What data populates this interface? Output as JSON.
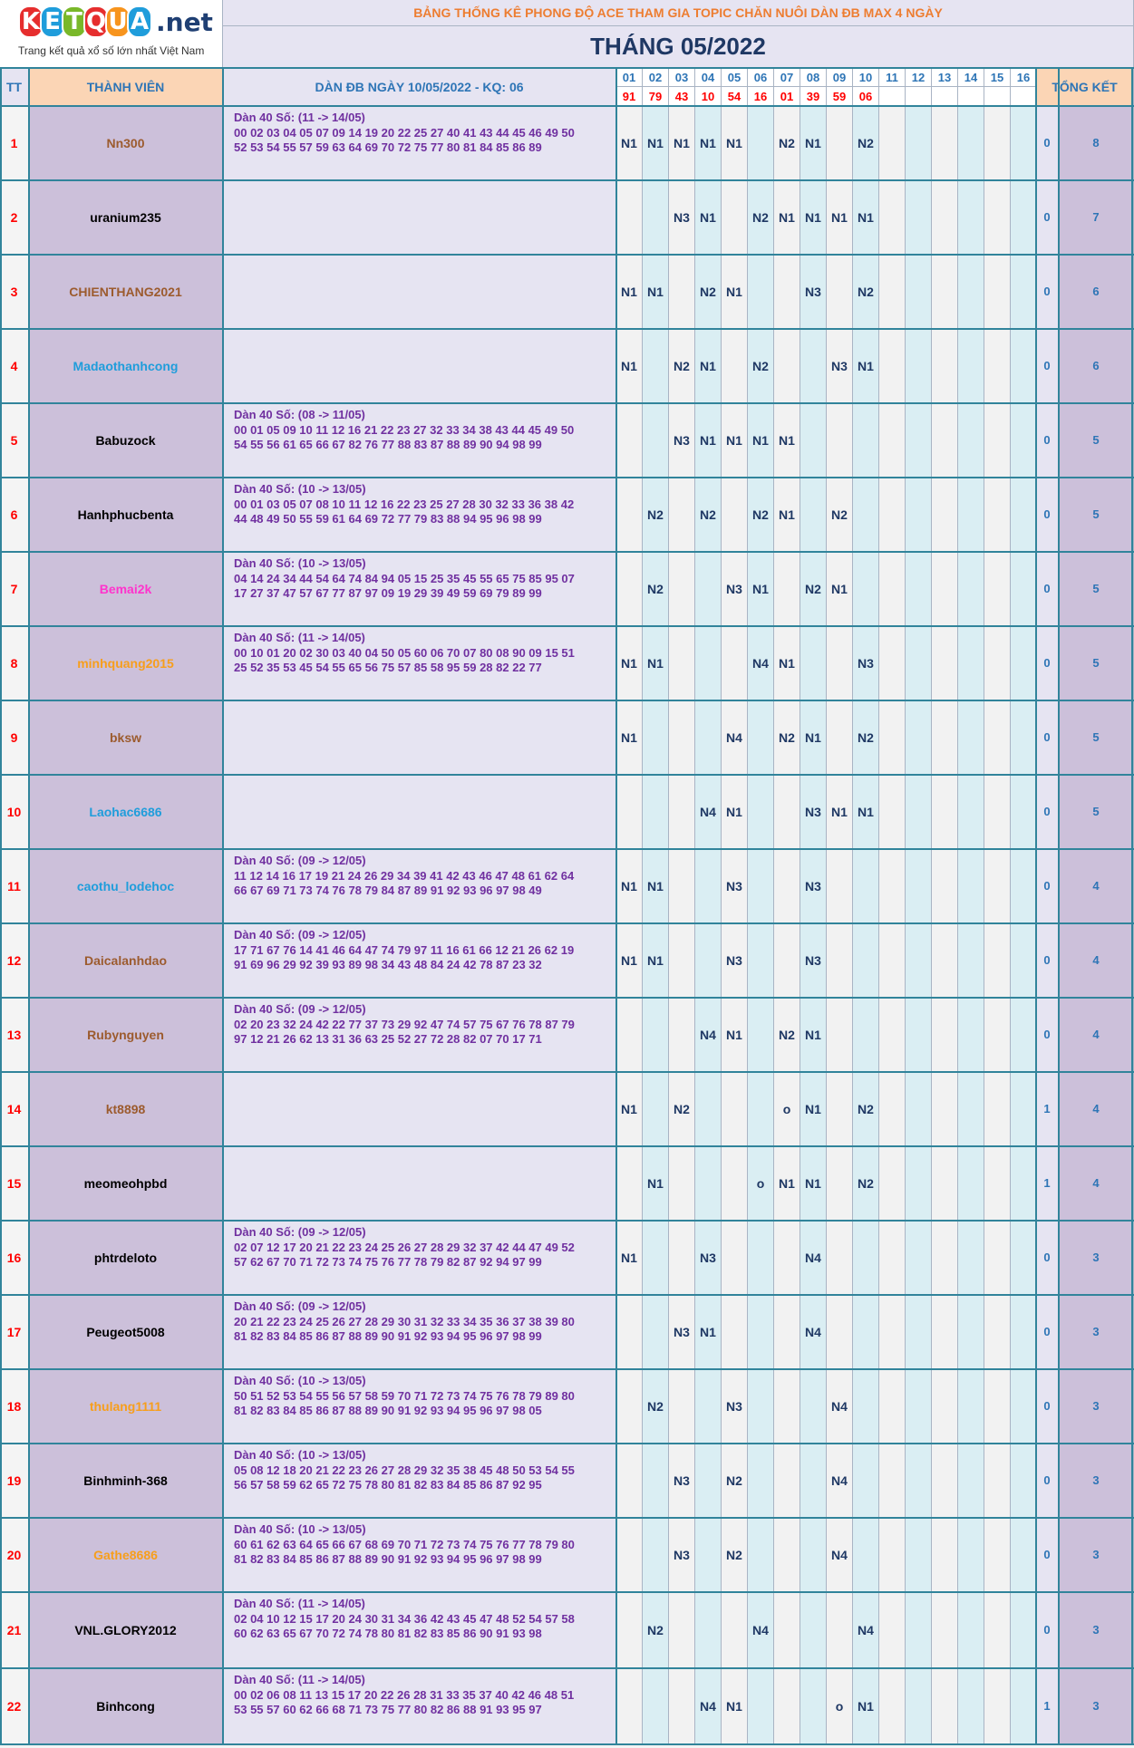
{
  "logo": {
    "letters": [
      "K",
      "E",
      "T",
      "Q",
      "U",
      "A"
    ],
    "suffix": ".net",
    "tagline": "Trang kết quả xổ số lớn nhất Việt Nam"
  },
  "banner_title": "BẢNG THỐNG KÊ PHONG ĐỘ ACE THAM GIA TOPIC CHĂN NUÔI DÀN ĐB MAX 4 NGÀY",
  "month_title": "THÁNG 05/2022",
  "headers": {
    "tt": "TT",
    "member": "THÀNH VIÊN",
    "dan": "DÀN ĐB NGÀY 10/05/2022 - KQ: 06",
    "summary": "TỔNG KẾT"
  },
  "days": [
    "01",
    "02",
    "03",
    "04",
    "05",
    "06",
    "07",
    "08",
    "09",
    "10",
    "11",
    "12",
    "13",
    "14",
    "15",
    "16"
  ],
  "results": [
    "91",
    "79",
    "43",
    "10",
    "54",
    "16",
    "01",
    "39",
    "59",
    "06",
    "",
    "",
    "",
    "",
    "",
    ""
  ],
  "colors": {
    "brown": "#9c5b2e",
    "black": "#000000",
    "blue": "#1f9ddb",
    "pink": "#ff33cc",
    "orange": "#f79e1b"
  },
  "rows": [
    {
      "tt": "1",
      "name": "Nn300",
      "color": "brown",
      "dan_title": "Dàn 40 Số: (11 -> 14/05)",
      "dan_1": "00 02 03 04 05 07 09 14 19 20 22 25 27 40 41 43 44 45 46 49 50",
      "dan_2": "52 53 54 55 57 59 63 64 69 70 72 75 77 80 81 84 85 86 89",
      "marks": [
        "N1",
        "N1",
        "N1",
        "N1",
        "N1",
        "",
        "N2",
        "N1",
        "",
        "N2",
        "",
        "",
        "",
        "",
        "",
        ""
      ],
      "s1": "0",
      "s2": "8"
    },
    {
      "tt": "2",
      "name": "uranium235",
      "color": "black",
      "dan_title": "",
      "dan_1": "",
      "dan_2": "",
      "marks": [
        "",
        "",
        "N3",
        "N1",
        "",
        "N2",
        "N1",
        "N1",
        "N1",
        "N1",
        "",
        "",
        "",
        "",
        "",
        ""
      ],
      "s1": "0",
      "s2": "7"
    },
    {
      "tt": "3",
      "name": "CHIENTHANG2021",
      "color": "brown",
      "dan_title": "",
      "dan_1": "",
      "dan_2": "",
      "marks": [
        "N1",
        "N1",
        "",
        "N2",
        "N1",
        "",
        "",
        "N3",
        "",
        "N2",
        "",
        "",
        "",
        "",
        "",
        ""
      ],
      "s1": "0",
      "s2": "6"
    },
    {
      "tt": "4",
      "name": "Madaothanhcong",
      "color": "blue",
      "dan_title": "",
      "dan_1": "",
      "dan_2": "",
      "marks": [
        "N1",
        "",
        "N2",
        "N1",
        "",
        "N2",
        "",
        "",
        "N3",
        "N1",
        "",
        "",
        "",
        "",
        "",
        ""
      ],
      "s1": "0",
      "s2": "6"
    },
    {
      "tt": "5",
      "name": "Babuzock",
      "color": "black",
      "dan_title": "Dàn 40 Số: (08 -> 11/05)",
      "dan_1": "00 01 05 09 10 11 12 16 21 22 23 27 32 33 34 38 43 44 45 49 50",
      "dan_2": "54 55 56 61 65 66 67 82 76 77 88 83 87 88 89 90 94 98 99",
      "marks": [
        "",
        "",
        "N3",
        "N1",
        "N1",
        "N1",
        "N1",
        "",
        "",
        "",
        "",
        "",
        "",
        "",
        "",
        ""
      ],
      "s1": "0",
      "s2": "5"
    },
    {
      "tt": "6",
      "name": "Hanhphucbenta",
      "color": "black",
      "dan_title": "Dàn 40 Số: (10 -> 13/05)",
      "dan_1": "00 01 03 05 07 08 10 11 12 16 22 23 25 27 28 30 32 33 36 38 42",
      "dan_2": "44 48 49 50 55 59 61 64 69 72 77 79 83 88 94 95 96 98 99",
      "marks": [
        "",
        "N2",
        "",
        "N2",
        "",
        "N2",
        "N1",
        "",
        "N2",
        "",
        "",
        "",
        "",
        "",
        "",
        ""
      ],
      "s1": "0",
      "s2": "5"
    },
    {
      "tt": "7",
      "name": "Bemai2k",
      "color": "pink",
      "dan_title": "Dàn 40 Số: (10 -> 13/05)",
      "dan_1": "04 14 24 34 44 54 64 74 84 94 05 15 25 35 45 55 65 75 85 95 07",
      "dan_2": "17 27 37 47 57 67 77 87 97 09 19 29 39 49 59 69 79 89 99",
      "marks": [
        "",
        "N2",
        "",
        "",
        "N3",
        "N1",
        "",
        "N2",
        "N1",
        "",
        "",
        "",
        "",
        "",
        "",
        ""
      ],
      "s1": "0",
      "s2": "5"
    },
    {
      "tt": "8",
      "name": "minhquang2015",
      "color": "orange",
      "dan_title": "Dàn 40 Số: (11 -> 14/05)",
      "dan_1": "00 10 01 20 02 30 03 40 04 50 05 60 06 70 07 80 08 90 09 15 51",
      "dan_2": "25 52 35 53 45 54 55 65 56 75 57 85 58 95 59 28 82 22 77",
      "marks": [
        "N1",
        "N1",
        "",
        "",
        "",
        "N4",
        "N1",
        "",
        "",
        "N3",
        "",
        "",
        "",
        "",
        "",
        ""
      ],
      "s1": "0",
      "s2": "5"
    },
    {
      "tt": "9",
      "name": "bksw",
      "color": "brown",
      "dan_title": "",
      "dan_1": "",
      "dan_2": "",
      "marks": [
        "N1",
        "",
        "",
        "",
        "N4",
        "",
        "N2",
        "N1",
        "",
        "N2",
        "",
        "",
        "",
        "",
        "",
        ""
      ],
      "s1": "0",
      "s2": "5"
    },
    {
      "tt": "10",
      "name": "Laohac6686",
      "color": "blue",
      "dan_title": "",
      "dan_1": "",
      "dan_2": "",
      "marks": [
        "",
        "",
        "",
        "N4",
        "N1",
        "",
        "",
        "N3",
        "N1",
        "N1",
        "",
        "",
        "",
        "",
        "",
        ""
      ],
      "s1": "0",
      "s2": "5"
    },
    {
      "tt": "11",
      "name": "caothu_lodehoc",
      "color": "blue",
      "dan_title": "Dàn 40 Số: (09 -> 12/05)",
      "dan_1": "11 12 14 16 17 19 21 24 26 29 34 39 41 42 43 46 47 48 61 62 64",
      "dan_2": "66 67 69 71 73 74 76 78 79 84 87 89 91 92 93 96 97 98 49",
      "marks": [
        "N1",
        "N1",
        "",
        "",
        "N3",
        "",
        "",
        "N3",
        "",
        "",
        "",
        "",
        "",
        "",
        "",
        ""
      ],
      "s1": "0",
      "s2": "4"
    },
    {
      "tt": "12",
      "name": "Daicalanhdao",
      "color": "brown",
      "dan_title": "Dàn 40 Số: (09 -> 12/05)",
      "dan_1": "17 71 67 76 14 41 46 64 47 74 79 97 11 16 61 66 12 21 26 62 19",
      "dan_2": "91 69 96 29 92 39 93 89 98 34 43 48 84 24 42 78 87 23 32",
      "marks": [
        "N1",
        "N1",
        "",
        "",
        "N3",
        "",
        "",
        "N3",
        "",
        "",
        "",
        "",
        "",
        "",
        "",
        ""
      ],
      "s1": "0",
      "s2": "4"
    },
    {
      "tt": "13",
      "name": "Rubynguyen",
      "color": "brown",
      "dan_title": "Dàn 40 Số: (09 -> 12/05)",
      "dan_1": "02 20 23 32 24 42 22 77 37 73 29 92 47 74 57 75 67 76 78 87 79",
      "dan_2": "97 12 21 26 62 13 31 36 63 25 52 27 72 28 82 07 70 17 71",
      "marks": [
        "",
        "",
        "",
        "N4",
        "N1",
        "",
        "N2",
        "N1",
        "",
        "",
        "",
        "",
        "",
        "",
        "",
        ""
      ],
      "s1": "0",
      "s2": "4"
    },
    {
      "tt": "14",
      "name": "kt8898",
      "color": "brown",
      "dan_title": "",
      "dan_1": "",
      "dan_2": "",
      "marks": [
        "N1",
        "",
        "N2",
        "",
        "",
        "",
        "o",
        "N1",
        "",
        "N2",
        "",
        "",
        "",
        "",
        "",
        ""
      ],
      "s1": "1",
      "s2": "4"
    },
    {
      "tt": "15",
      "name": "meomeohpbd",
      "color": "black",
      "dan_title": "",
      "dan_1": "",
      "dan_2": "",
      "marks": [
        "",
        "N1",
        "",
        "",
        "",
        "o",
        "N1",
        "N1",
        "",
        "N2",
        "",
        "",
        "",
        "",
        "",
        ""
      ],
      "s1": "1",
      "s2": "4"
    },
    {
      "tt": "16",
      "name": "phtrdeloto",
      "color": "black",
      "dan_title": "Dàn 40 Số: (09 -> 12/05)",
      "dan_1": "02 07 12 17 20 21 22 23 24 25 26 27 28 29 32 37 42 44 47 49 52",
      "dan_2": "57 62 67 70 71 72 73 74 75 76 77 78 79 82 87 92 94 97 99",
      "marks": [
        "N1",
        "",
        "",
        "N3",
        "",
        "",
        "",
        "N4",
        "",
        "",
        "",
        "",
        "",
        "",
        "",
        ""
      ],
      "s1": "0",
      "s2": "3"
    },
    {
      "tt": "17",
      "name": "Peugeot5008",
      "color": "black",
      "dan_title": "Dàn 40 Số: (09 -> 12/05)",
      "dan_1": "20 21 22 23 24 25 26 27 28 29 30 31 32 33 34 35 36 37 38 39 80",
      "dan_2": "81 82 83 84 85 86 87 88 89 90 91 92 93 94 95 96 97 98 99",
      "marks": [
        "",
        "",
        "N3",
        "N1",
        "",
        "",
        "",
        "N4",
        "",
        "",
        "",
        "",
        "",
        "",
        "",
        ""
      ],
      "s1": "0",
      "s2": "3"
    },
    {
      "tt": "18",
      "name": "thulang1111",
      "color": "orange",
      "dan_title": "Dàn 40 Số: (10 -> 13/05)",
      "dan_1": "50 51 52 53 54 55 56 57 58 59 70 71 72 73 74 75 76 78 79 89 80",
      "dan_2": "81 82 83 84 85 86 87 88 89 90 91 92 93 94 95 96 97 98 05",
      "marks": [
        "",
        "N2",
        "",
        "",
        "N3",
        "",
        "",
        "",
        "N4",
        "",
        "",
        "",
        "",
        "",
        "",
        ""
      ],
      "s1": "0",
      "s2": "3"
    },
    {
      "tt": "19",
      "name": "Binhminh-368",
      "color": "black",
      "dan_title": "Dàn 40 Số: (10 -> 13/05)",
      "dan_1": "05 08 12 18 20 21 22 23 26 27 28 29 32 35 38 45 48 50 53 54 55",
      "dan_2": "56 57 58 59 62 65 72 75 78 80 81 82 83 84 85 86 87 92 95",
      "marks": [
        "",
        "",
        "N3",
        "",
        "N2",
        "",
        "",
        "",
        "N4",
        "",
        "",
        "",
        "",
        "",
        "",
        ""
      ],
      "s1": "0",
      "s2": "3"
    },
    {
      "tt": "20",
      "name": "Gathe8686",
      "color": "orange",
      "dan_title": "Dàn 40 Số: (10 -> 13/05)",
      "dan_1": "60 61 62 63 64 65 66 67 68 69 70 71 72 73 74 75 76 77 78 79 80",
      "dan_2": "81 82 83 84 85 86 87 88 89 90 91 92 93 94 95 96 97 98 99",
      "marks": [
        "",
        "",
        "N3",
        "",
        "N2",
        "",
        "",
        "",
        "N4",
        "",
        "",
        "",
        "",
        "",
        "",
        ""
      ],
      "s1": "0",
      "s2": "3"
    },
    {
      "tt": "21",
      "name": "VNL.GLORY2012",
      "color": "black",
      "dan_title": "Dàn 40 Số: (11 -> 14/05)",
      "dan_1": "02 04 10 12 15 17 20 24 30 31 34 36 42 43 45 47 48 52 54 57 58",
      "dan_2": "60 62 63 65 67 70 72 74 78 80 81 82 83 85 86 90 91 93 98",
      "marks": [
        "",
        "N2",
        "",
        "",
        "",
        "N4",
        "",
        "",
        "",
        "N4",
        "",
        "",
        "",
        "",
        "",
        ""
      ],
      "s1": "0",
      "s2": "3"
    },
    {
      "tt": "22",
      "name": "Binhcong",
      "color": "black",
      "dan_title": "Dàn 40 Số: (11 -> 14/05)",
      "dan_1": "00 02 06 08 11 13 15 17 20 22 26 28 31 33 35 37 40 42 46 48 51",
      "dan_2": "53 55 57 60 62 66 68 71 73 75 77 80 82 86 88 91 93 95 97",
      "marks": [
        "",
        "",
        "",
        "N4",
        "N1",
        "",
        "",
        "",
        "o",
        "N1",
        "",
        "",
        "",
        "",
        "",
        ""
      ],
      "s1": "1",
      "s2": "3"
    }
  ]
}
